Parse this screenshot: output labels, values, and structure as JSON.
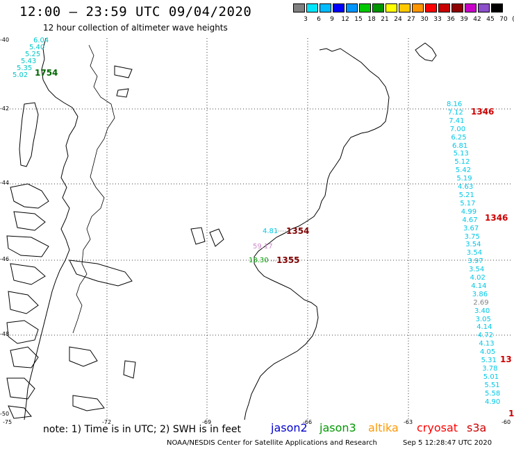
{
  "title": "12:00 – 23:59 UTC 09/04/2020",
  "subtitle": "12 hour collection of altimeter wave heights",
  "note": "note: 1) Time is in UTC; 2) SWH is in feet",
  "credit": "NOAA/NESDIS Center for Satellite Applications and Research",
  "timestamp": "Sep  5 12:28:47 UTC 2020",
  "satellites": [
    {
      "name": "jason2",
      "color": "#0000cc"
    },
    {
      "name": "jason3",
      "color": "#009900"
    },
    {
      "name": "altika",
      "color": "#ff9900"
    },
    {
      "name": "cryosat",
      "color": "#ff0000"
    },
    {
      "name": "s3a",
      "color": "#cc0000"
    }
  ],
  "color_scale": {
    "swatches": [
      "#808080",
      "#00e5ff",
      "#00bcff",
      "#0000ff",
      "#0096ff",
      "#00c800",
      "#009600",
      "#ffff00",
      "#ffc800",
      "#ff9600",
      "#ff0000",
      "#c80000",
      "#900000",
      "#c800c8",
      "#8c50c8",
      "#000000"
    ],
    "labels": [
      "3",
      "6",
      "9",
      "12",
      "15",
      "18",
      "21",
      "24",
      "27",
      "30",
      "33",
      "36",
      "39",
      "42",
      "45",
      "70",
      "(ft)"
    ]
  },
  "lat_labels": [
    "-40",
    "-42",
    "-44",
    "-46",
    "-48",
    "-50"
  ],
  "lon_labels": [
    "-75",
    "-72",
    "-69",
    "-66",
    "-63",
    "-60"
  ],
  "tracks": [
    {
      "label": "1754",
      "label_color": "#006600",
      "values": [
        "6.04",
        "5.40",
        "5.25",
        "5.43",
        "5.35",
        "5.02"
      ],
      "value_color": "#00c8c8"
    },
    {
      "label": "1346",
      "label_color": "#cc0000",
      "values": [
        "8.16",
        "7.12",
        "7.41",
        "7.00",
        "6.25",
        "6.81",
        "5.13",
        "5.12",
        "5.42",
        "5.19",
        "4.63",
        "5.21",
        "5.17",
        "4.99",
        "4.67",
        "3.67",
        "3.75",
        "3.54",
        "3.54",
        "3.97",
        "3.54",
        "4.02",
        "4.14",
        "3.86",
        "2.69",
        "3.40",
        "3.05",
        "4.14",
        "4.72",
        "4.13",
        "4.05",
        "5.31",
        "3.78",
        "5.01",
        "5.51",
        "5.58",
        "4.90"
      ],
      "value_color": "#00c8e6"
    },
    {
      "label": "1346",
      "label_color": "#cc0000"
    },
    {
      "label": "13",
      "label_color": "#cc0000"
    },
    {
      "label": "1",
      "label_color": "#cc0000"
    },
    {
      "label": "1354",
      "label_color": "#800000",
      "values": [
        "4.81"
      ],
      "value_color": "#00c8e6"
    },
    {
      "label": "1355",
      "label_color": "#800000",
      "values": [
        "59.17",
        "18.30"
      ],
      "value_color": "#cc88cc"
    }
  ]
}
